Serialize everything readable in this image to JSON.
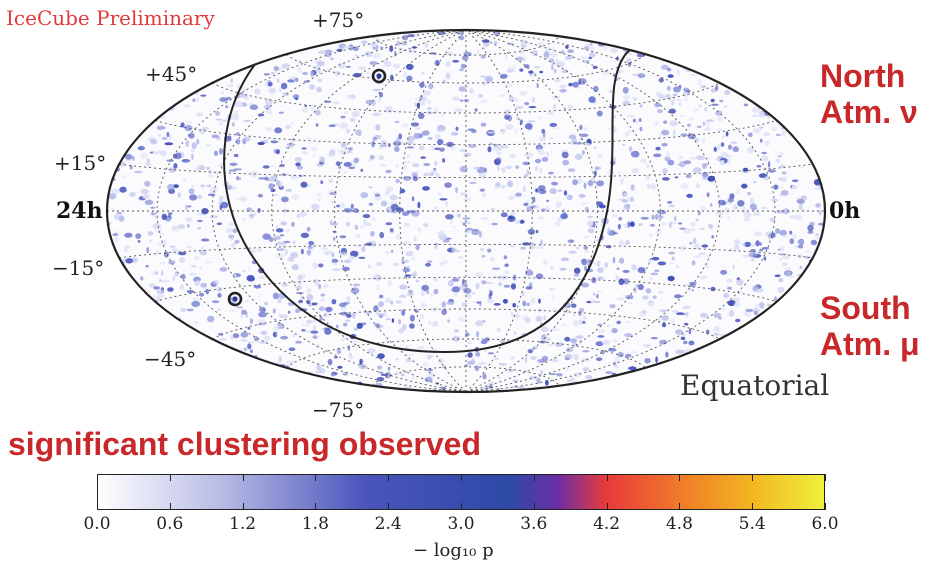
{
  "header": {
    "watermark": "IceCube Preliminary"
  },
  "map": {
    "projection": "Hammer-Aitoff",
    "coordinate_system_label": "Equatorial",
    "ra_labels": {
      "left": "24h",
      "right": "0h"
    },
    "dec_labels": [
      {
        "id": "p75",
        "text": "+75°"
      },
      {
        "id": "p45",
        "text": "+45°"
      },
      {
        "id": "p15",
        "text": "+15°"
      },
      {
        "id": "m15",
        "text": "−15°"
      },
      {
        "id": "m45",
        "text": "−45°"
      },
      {
        "id": "m75",
        "text": "−75°"
      }
    ],
    "hotspot_markers": 2,
    "colors": {
      "outline": "#222222",
      "graticule": "#555555",
      "hotspot": "#2b3aa3",
      "spots": "#3b4fc4"
    }
  },
  "annotations": {
    "north_line1": "North",
    "north_line2": "Atm. ν",
    "south_line1": "South",
    "south_line2": "Atm. μ",
    "headline": "significant clustering observed",
    "color": "#c8282a"
  },
  "colorbar": {
    "label": "− log₁₀ p",
    "ticks": [
      "0.0",
      "0.6",
      "1.2",
      "1.8",
      "2.4",
      "3.0",
      "3.6",
      "4.2",
      "4.8",
      "5.4",
      "6.0"
    ],
    "range": [
      0.0,
      6.0
    ],
    "stops": [
      {
        "v": 0.0,
        "color": "#ffffff"
      },
      {
        "v": 1.0,
        "color": "#b9bde4"
      },
      {
        "v": 2.2,
        "color": "#4b55bd"
      },
      {
        "v": 3.4,
        "color": "#2d49a6"
      },
      {
        "v": 3.8,
        "color": "#6b2fa5"
      },
      {
        "v": 4.2,
        "color": "#e83a3a"
      },
      {
        "v": 4.9,
        "color": "#f28428"
      },
      {
        "v": 5.4,
        "color": "#f3b522"
      },
      {
        "v": 6.0,
        "color": "#eff03b"
      }
    ]
  }
}
